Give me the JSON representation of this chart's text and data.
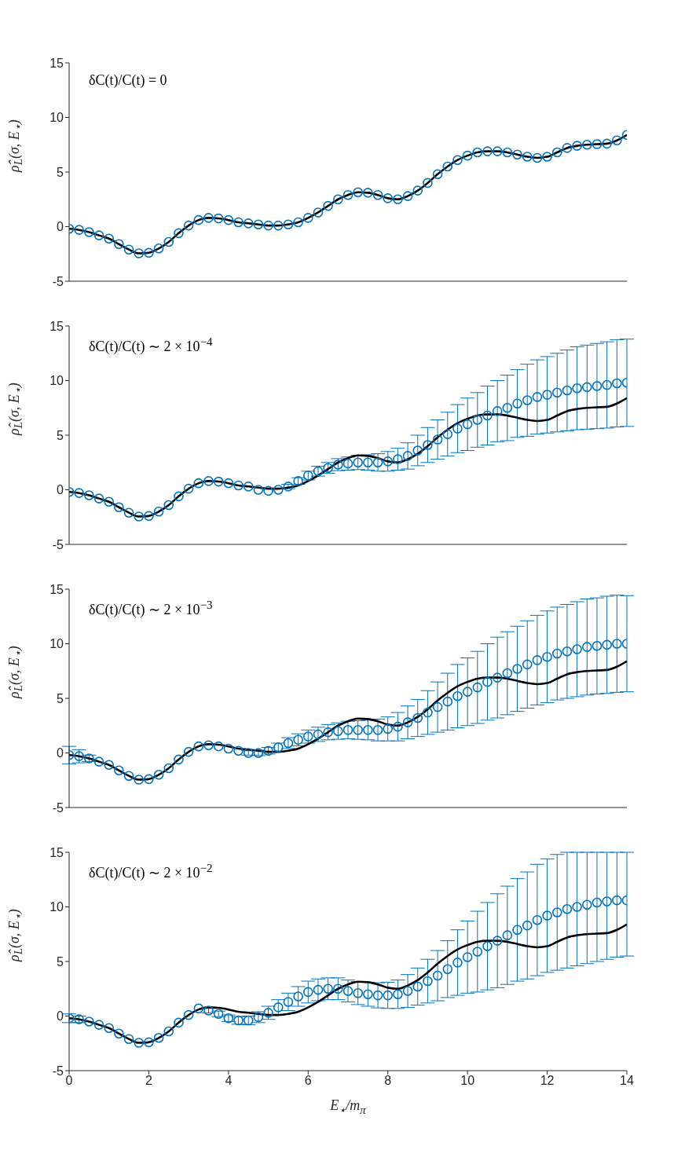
{
  "chart_data": [
    {
      "type": "line",
      "ylabel": "ρ̂$_{L}$(σ, E$_{⋆}$)",
      "annotations": [
        "δC(t)/C(t) = 0"
      ],
      "xlim": [
        0,
        14
      ],
      "ylim": [
        -5,
        15
      ],
      "xticks": [
        0,
        2,
        4,
        6,
        8,
        10,
        12,
        14
      ],
      "yticks": [
        -5,
        0,
        5,
        10,
        15
      ],
      "tick_labels": "y",
      "x": [
        0,
        0.25,
        0.5,
        0.75,
        1,
        1.25,
        1.5,
        1.75,
        2,
        2.25,
        2.5,
        2.75,
        3,
        3.25,
        3.5,
        3.75,
        4,
        4.25,
        4.5,
        4.75,
        5,
        5.25,
        5.5,
        5.75,
        6,
        6.25,
        6.5,
        6.75,
        7,
        7.25,
        7.5,
        7.75,
        8,
        8.25,
        8.5,
        8.75,
        9,
        9.25,
        9.5,
        9.75,
        10,
        10.25,
        10.5,
        10.75,
        11,
        11.25,
        11.5,
        11.75,
        12,
        12.25,
        12.5,
        12.75,
        13,
        13.25,
        13.5,
        13.75,
        14
      ],
      "series": [
        {
          "type": "scatter",
          "marker": "circle",
          "color": "#0072bd",
          "values": [
            -0.2,
            -0.3,
            -0.5,
            -0.8,
            -1.1,
            -1.6,
            -2.1,
            -2.45,
            -2.4,
            -2.0,
            -1.4,
            -0.6,
            0.1,
            0.6,
            0.8,
            0.75,
            0.6,
            0.4,
            0.3,
            0.2,
            0.1,
            0.1,
            0.2,
            0.4,
            0.8,
            1.3,
            1.9,
            2.5,
            2.9,
            3.15,
            3.1,
            2.9,
            2.6,
            2.5,
            2.8,
            3.3,
            4.0,
            4.8,
            5.5,
            6.1,
            6.5,
            6.8,
            6.9,
            6.9,
            6.8,
            6.6,
            6.4,
            6.3,
            6.4,
            6.8,
            7.2,
            7.4,
            7.5,
            7.55,
            7.6,
            7.9,
            8.4
          ]
        },
        {
          "type": "line",
          "color": "#000000",
          "values": [
            -0.2,
            -0.3,
            -0.5,
            -0.8,
            -1.1,
            -1.6,
            -2.1,
            -2.45,
            -2.4,
            -2.0,
            -1.4,
            -0.6,
            0.1,
            0.6,
            0.8,
            0.75,
            0.6,
            0.4,
            0.3,
            0.2,
            0.1,
            0.1,
            0.2,
            0.4,
            0.8,
            1.3,
            1.9,
            2.5,
            2.9,
            3.15,
            3.1,
            2.9,
            2.6,
            2.5,
            2.8,
            3.3,
            4.0,
            4.8,
            5.5,
            6.1,
            6.5,
            6.8,
            6.9,
            6.9,
            6.8,
            6.6,
            6.4,
            6.3,
            6.4,
            6.8,
            7.2,
            7.4,
            7.5,
            7.55,
            7.6,
            7.9,
            8.4
          ]
        }
      ]
    },
    {
      "type": "line",
      "ylabel": "ρ̂$_{L}$(σ, E$_{⋆}$)",
      "annotations": [
        "δC(t)/C(t) ∼ 2 × 10$^{−4}$"
      ],
      "xlim": [
        0,
        14
      ],
      "ylim": [
        -5,
        15
      ],
      "xticks": [
        0,
        2,
        4,
        6,
        8,
        10,
        12,
        14
      ],
      "yticks": [
        -5,
        0,
        5,
        10,
        15
      ],
      "tick_labels": "y",
      "x": [
        0,
        0.25,
        0.5,
        0.75,
        1,
        1.25,
        1.5,
        1.75,
        2,
        2.25,
        2.5,
        2.75,
        3,
        3.25,
        3.5,
        3.75,
        4,
        4.25,
        4.5,
        4.75,
        5,
        5.25,
        5.5,
        5.75,
        6,
        6.25,
        6.5,
        6.75,
        7,
        7.25,
        7.5,
        7.75,
        8,
        8.25,
        8.5,
        8.75,
        9,
        9.25,
        9.5,
        9.75,
        10,
        10.25,
        10.5,
        10.75,
        11,
        11.25,
        11.5,
        11.75,
        12,
        12.25,
        12.5,
        12.75,
        13,
        13.25,
        13.5,
        13.75,
        14
      ],
      "series": [
        {
          "type": "scatter",
          "marker": "circle",
          "color": "#0072bd",
          "values": [
            -0.2,
            -0.3,
            -0.5,
            -0.8,
            -1.1,
            -1.6,
            -2.1,
            -2.45,
            -2.4,
            -2.0,
            -1.4,
            -0.6,
            0.1,
            0.6,
            0.8,
            0.75,
            0.6,
            0.4,
            0.3,
            0.0,
            -0.1,
            0.0,
            0.3,
            0.8,
            1.3,
            1.7,
            2.0,
            2.3,
            2.4,
            2.5,
            2.5,
            2.5,
            2.6,
            2.8,
            3.1,
            3.6,
            4.1,
            4.6,
            5.1,
            5.6,
            6.0,
            6.4,
            6.8,
            7.2,
            7.5,
            7.9,
            8.2,
            8.5,
            8.7,
            8.9,
            9.1,
            9.3,
            9.4,
            9.5,
            9.6,
            9.75,
            9.8
          ],
          "errors": [
            null,
            null,
            null,
            null,
            null,
            null,
            null,
            null,
            null,
            null,
            null,
            null,
            null,
            null,
            null,
            null,
            null,
            null,
            null,
            null,
            null,
            null,
            0.2,
            0.3,
            0.4,
            0.45,
            0.5,
            0.55,
            0.6,
            0.65,
            0.7,
            0.8,
            0.9,
            1.0,
            1.2,
            1.4,
            1.6,
            1.8,
            2.0,
            2.2,
            2.4,
            2.5,
            2.7,
            2.8,
            3.0,
            3.1,
            3.3,
            3.4,
            3.5,
            3.6,
            3.7,
            3.8,
            3.85,
            3.9,
            3.95,
            4.0,
            4.0
          ]
        },
        {
          "type": "line",
          "color": "#000000",
          "values": [
            -0.2,
            -0.3,
            -0.5,
            -0.8,
            -1.1,
            -1.6,
            -2.1,
            -2.45,
            -2.4,
            -2.0,
            -1.4,
            -0.6,
            0.1,
            0.6,
            0.8,
            0.75,
            0.6,
            0.4,
            0.3,
            0.2,
            0.1,
            0.1,
            0.2,
            0.4,
            0.8,
            1.3,
            1.9,
            2.5,
            2.9,
            3.15,
            3.1,
            2.9,
            2.6,
            2.5,
            2.8,
            3.3,
            4.0,
            4.8,
            5.5,
            6.1,
            6.5,
            6.8,
            6.9,
            6.9,
            6.8,
            6.6,
            6.4,
            6.3,
            6.4,
            6.8,
            7.2,
            7.4,
            7.5,
            7.55,
            7.6,
            7.9,
            8.4
          ]
        }
      ]
    },
    {
      "type": "line",
      "ylabel": "ρ̂$_{L}$(σ, E$_{⋆}$)",
      "annotations": [
        "δC(t)/C(t) ∼ 2 × 10$^{−3}$"
      ],
      "xlim": [
        0,
        14
      ],
      "ylim": [
        -5,
        15
      ],
      "xticks": [
        0,
        2,
        4,
        6,
        8,
        10,
        12,
        14
      ],
      "yticks": [
        -5,
        0,
        5,
        10,
        15
      ],
      "tick_labels": "y",
      "x": [
        0,
        0.25,
        0.5,
        0.75,
        1,
        1.25,
        1.5,
        1.75,
        2,
        2.25,
        2.5,
        2.75,
        3,
        3.25,
        3.5,
        3.75,
        4,
        4.25,
        4.5,
        4.75,
        5,
        5.25,
        5.5,
        5.75,
        6,
        6.25,
        6.5,
        6.75,
        7,
        7.25,
        7.5,
        7.75,
        8,
        8.25,
        8.5,
        8.75,
        9,
        9.25,
        9.5,
        9.75,
        10,
        10.25,
        10.5,
        10.75,
        11,
        11.25,
        11.5,
        11.75,
        12,
        12.25,
        12.5,
        12.75,
        13,
        13.25,
        13.5,
        13.75,
        14
      ],
      "series": [
        {
          "type": "scatter",
          "marker": "circle",
          "color": "#0072bd",
          "values": [
            -0.2,
            -0.3,
            -0.5,
            -0.8,
            -1.1,
            -1.6,
            -2.1,
            -2.45,
            -2.4,
            -2.0,
            -1.4,
            -0.6,
            0.1,
            0.6,
            0.7,
            0.6,
            0.4,
            0.2,
            0.0,
            0.0,
            0.2,
            0.5,
            0.9,
            1.2,
            1.5,
            1.7,
            1.9,
            2.0,
            2.1,
            2.1,
            2.1,
            2.1,
            2.2,
            2.4,
            2.8,
            3.2,
            3.7,
            4.2,
            4.7,
            5.2,
            5.6,
            6.0,
            6.5,
            6.9,
            7.3,
            7.7,
            8.1,
            8.5,
            8.8,
            9.1,
            9.3,
            9.5,
            9.7,
            9.8,
            9.9,
            10.0,
            10.0
          ],
          "errors": [
            0.8,
            0.6,
            0.3,
            null,
            null,
            null,
            null,
            null,
            null,
            null,
            null,
            null,
            null,
            null,
            null,
            null,
            null,
            null,
            0.2,
            0.25,
            0.3,
            0.4,
            0.5,
            0.55,
            0.6,
            0.65,
            0.7,
            0.75,
            0.8,
            0.85,
            0.9,
            1.0,
            1.1,
            1.3,
            1.5,
            1.7,
            2.0,
            2.3,
            2.6,
            2.9,
            3.1,
            3.3,
            3.5,
            3.7,
            3.8,
            3.9,
            4.0,
            4.1,
            4.2,
            4.25,
            4.3,
            4.35,
            4.4,
            4.4,
            4.45,
            4.45,
            4.4
          ]
        },
        {
          "type": "line",
          "color": "#000000",
          "values": [
            -0.2,
            -0.3,
            -0.5,
            -0.8,
            -1.1,
            -1.6,
            -2.1,
            -2.45,
            -2.4,
            -2.0,
            -1.4,
            -0.6,
            0.1,
            0.6,
            0.8,
            0.75,
            0.6,
            0.4,
            0.3,
            0.2,
            0.1,
            0.1,
            0.2,
            0.4,
            0.8,
            1.3,
            1.9,
            2.5,
            2.9,
            3.15,
            3.1,
            2.9,
            2.6,
            2.5,
            2.8,
            3.3,
            4.0,
            4.8,
            5.5,
            6.1,
            6.5,
            6.8,
            6.9,
            6.9,
            6.8,
            6.6,
            6.4,
            6.3,
            6.4,
            6.8,
            7.2,
            7.4,
            7.5,
            7.55,
            7.6,
            7.9,
            8.4
          ]
        }
      ]
    },
    {
      "type": "line",
      "xlabel": "E$_{⋆}$/m$_{π}$",
      "ylabel": "ρ̂$_{L}$(σ, E$_{⋆}$)",
      "annotations": [
        "δC(t)/C(t) ∼ 2 × 10$^{−2}$"
      ],
      "xlim": [
        0,
        14
      ],
      "ylim": [
        -5,
        15
      ],
      "xticks": [
        0,
        2,
        4,
        6,
        8,
        10,
        12,
        14
      ],
      "yticks": [
        -5,
        0,
        5,
        10,
        15
      ],
      "x": [
        0,
        0.25,
        0.5,
        0.75,
        1,
        1.25,
        1.5,
        1.75,
        2,
        2.25,
        2.5,
        2.75,
        3,
        3.25,
        3.5,
        3.75,
        4,
        4.25,
        4.5,
        4.75,
        5,
        5.25,
        5.5,
        5.75,
        6,
        6.25,
        6.5,
        6.75,
        7,
        7.25,
        7.5,
        7.75,
        8,
        8.25,
        8.5,
        8.75,
        9,
        9.25,
        9.5,
        9.75,
        10,
        10.25,
        10.5,
        10.75,
        11,
        11.25,
        11.5,
        11.75,
        12,
        12.25,
        12.5,
        12.75,
        13,
        13.25,
        13.5,
        13.75,
        14
      ],
      "series": [
        {
          "type": "scatter",
          "marker": "circle",
          "color": "#0072bd",
          "values": [
            -0.2,
            -0.3,
            -0.5,
            -0.8,
            -1.1,
            -1.6,
            -2.1,
            -2.45,
            -2.4,
            -2.0,
            -1.4,
            -0.6,
            0.1,
            0.7,
            0.5,
            0.2,
            -0.2,
            -0.4,
            -0.4,
            -0.1,
            0.3,
            0.8,
            1.3,
            1.8,
            2.2,
            2.4,
            2.5,
            2.5,
            2.3,
            2.1,
            2.0,
            1.9,
            1.9,
            2.0,
            2.3,
            2.7,
            3.2,
            3.7,
            4.3,
            4.9,
            5.4,
            5.9,
            6.4,
            6.9,
            7.4,
            7.9,
            8.3,
            8.8,
            9.2,
            9.5,
            9.8,
            10.0,
            10.2,
            10.4,
            10.5,
            10.6,
            10.6
          ],
          "errors": [
            0.4,
            0.3,
            null,
            null,
            null,
            null,
            null,
            null,
            null,
            null,
            null,
            null,
            null,
            null,
            0.2,
            0.25,
            0.3,
            0.35,
            0.4,
            0.5,
            0.6,
            0.7,
            0.8,
            0.9,
            1.0,
            1.0,
            1.0,
            1.0,
            1.0,
            1.05,
            1.1,
            1.15,
            1.2,
            1.3,
            1.5,
            1.7,
            2.0,
            2.3,
            2.6,
            3.0,
            3.3,
            3.7,
            4.0,
            4.3,
            4.5,
            4.7,
            4.9,
            5.1,
            5.2,
            5.3,
            [
              4.4,
              15
            ],
            [
              4.6,
              15
            ],
            [
              4.8,
              15
            ],
            [
              5.0,
              15
            ],
            [
              5.2,
              15
            ],
            [
              5.4,
              15
            ],
            [
              5.5,
              15
            ]
          ]
        },
        {
          "type": "line",
          "color": "#000000",
          "values": [
            -0.2,
            -0.3,
            -0.5,
            -0.8,
            -1.1,
            -1.6,
            -2.1,
            -2.45,
            -2.4,
            -2.0,
            -1.4,
            -0.6,
            0.1,
            0.6,
            0.8,
            0.75,
            0.6,
            0.4,
            0.3,
            0.2,
            0.1,
            0.1,
            0.2,
            0.4,
            0.8,
            1.3,
            1.9,
            2.5,
            2.9,
            3.15,
            3.1,
            2.9,
            2.6,
            2.5,
            2.8,
            3.3,
            4.0,
            4.8,
            5.5,
            6.1,
            6.5,
            6.8,
            6.9,
            6.9,
            6.8,
            6.6,
            6.4,
            6.3,
            6.4,
            6.8,
            7.2,
            7.4,
            7.5,
            7.55,
            7.6,
            7.9,
            8.4
          ]
        }
      ]
    }
  ]
}
